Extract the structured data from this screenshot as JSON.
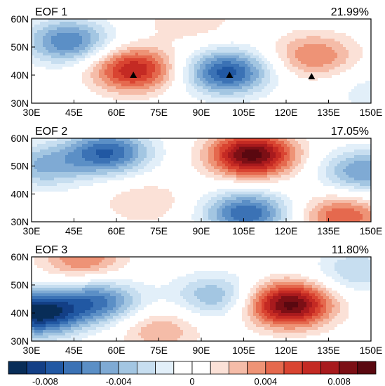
{
  "chart_data": {
    "type": "heatmap",
    "panels": [
      {
        "label": "EOF 1",
        "variance": "21.99%",
        "centers": [
          {
            "lon": 43,
            "lat": 52,
            "value": -0.006
          },
          {
            "lon": 66,
            "lat": 42,
            "value": 0.007
          },
          {
            "lon": 99,
            "lat": 41,
            "value": -0.0075
          },
          {
            "lon": 130,
            "lat": 47,
            "value": 0.004
          },
          {
            "lon": 150,
            "lat": 34,
            "value": -0.0015
          },
          {
            "lon": 86,
            "lat": 60,
            "value": 0.002
          }
        ],
        "triangles": [
          {
            "lon": 66,
            "lat": 40
          },
          {
            "lon": 100,
            "lat": 40
          },
          {
            "lon": 129,
            "lat": 39.5
          }
        ]
      },
      {
        "label": "EOF 2",
        "variance": "17.05%",
        "centers": [
          {
            "lon": 57,
            "lat": 55,
            "value": -0.007
          },
          {
            "lon": 34,
            "lat": 50,
            "value": -0.004
          },
          {
            "lon": 108,
            "lat": 54,
            "value": 0.0095
          },
          {
            "lon": 106,
            "lat": 33,
            "value": -0.007
          },
          {
            "lon": 147,
            "lat": 48,
            "value": -0.005
          },
          {
            "lon": 140,
            "lat": 32,
            "value": 0.005
          },
          {
            "lon": 70,
            "lat": 37,
            "value": 0.002
          }
        ],
        "triangles": []
      },
      {
        "label": "EOF 3",
        "variance": "11.80%",
        "centers": [
          {
            "lon": 32,
            "lat": 40,
            "value": -0.0095
          },
          {
            "lon": 54,
            "lat": 44,
            "value": -0.006
          },
          {
            "lon": 95,
            "lat": 46,
            "value": -0.004
          },
          {
            "lon": 121,
            "lat": 43,
            "value": 0.0095
          },
          {
            "lon": 48,
            "lat": 59,
            "value": 0.004
          },
          {
            "lon": 75,
            "lat": 34,
            "value": 0.003
          },
          {
            "lon": 145,
            "lat": 55,
            "value": -0.003
          }
        ],
        "triangles": []
      }
    ],
    "xaxis": {
      "range": [
        30,
        150
      ],
      "ticks": [
        "30E",
        "45E",
        "60E",
        "75E",
        "90E",
        "105E",
        "120E",
        "135E",
        "150E"
      ]
    },
    "yaxis": {
      "range": [
        30,
        60
      ],
      "ticks": [
        "30N",
        "40N",
        "50N",
        "60N"
      ]
    },
    "colorbar": {
      "levels": [
        -0.01,
        -0.009,
        -0.008,
        -0.007,
        -0.006,
        -0.005,
        -0.004,
        -0.003,
        -0.002,
        -0.001,
        0,
        0.001,
        0.002,
        0.003,
        0.004,
        0.005,
        0.006,
        0.007,
        0.008,
        0.009,
        0.01
      ],
      "colors": [
        "#082d58",
        "#133f86",
        "#2158a3",
        "#3b72b5",
        "#5b8fc6",
        "#7faad4",
        "#a3c6e2",
        "#c7def0",
        "#e2eff9",
        "#ffffff",
        "#ffffff",
        "#fbe1d7",
        "#f5bca8",
        "#ee9376",
        "#e5694e",
        "#d94431",
        "#c42a23",
        "#a81a1d",
        "#7c0f15",
        "#5a0810"
      ],
      "labels": [
        "-0.008",
        "-0.004",
        "0",
        "0.004",
        "0.008"
      ],
      "label_values": [
        -0.008,
        -0.004,
        0,
        0.004,
        0.008
      ]
    }
  }
}
